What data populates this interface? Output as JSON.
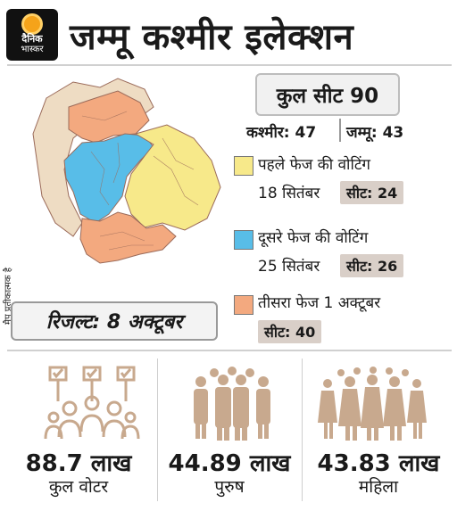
{
  "brand": {
    "line1": "दैनिक",
    "line2": "भास्कर"
  },
  "title": "जम्मू कश्मीर इलेक्शन",
  "side_note": "मैप प्रतीकात्मक है",
  "total_seats": "कुल सीट 90",
  "regions": {
    "kashmir": "कश्मीर: 47",
    "jammu": "जम्मू: 43"
  },
  "phases": [
    {
      "line1": "पहले फेज की वोटिंग",
      "date": "18 सितंबर",
      "seats": "सीट: 24",
      "color": "#f7e98a"
    },
    {
      "line1": "दूसरे फेज की वोटिंग",
      "date": "25 सितंबर",
      "seats": "सीट: 26",
      "color": "#58bde8"
    },
    {
      "line1": "तीसरा फेज 1 अक्टूबर",
      "seats": "सीट: 40",
      "color": "#f3a97f"
    }
  ],
  "result": "रिजल्ट: 8 अक्टूबर",
  "stats": [
    {
      "value": "88.7 लाख",
      "label": "कुल वोटर",
      "icon": "voters-with-placards-icon"
    },
    {
      "value": "44.89 लाख",
      "label": "पुरुष",
      "icon": "men-crowd-icon"
    },
    {
      "value": "43.83 लाख",
      "label": "महिला",
      "icon": "women-crowd-icon"
    }
  ],
  "colors": {
    "neutral_region": "#eedcc3",
    "phase1": "#f7e98a",
    "phase2": "#58bde8",
    "phase3": "#f3a97f",
    "icon": "#c8a98e"
  }
}
